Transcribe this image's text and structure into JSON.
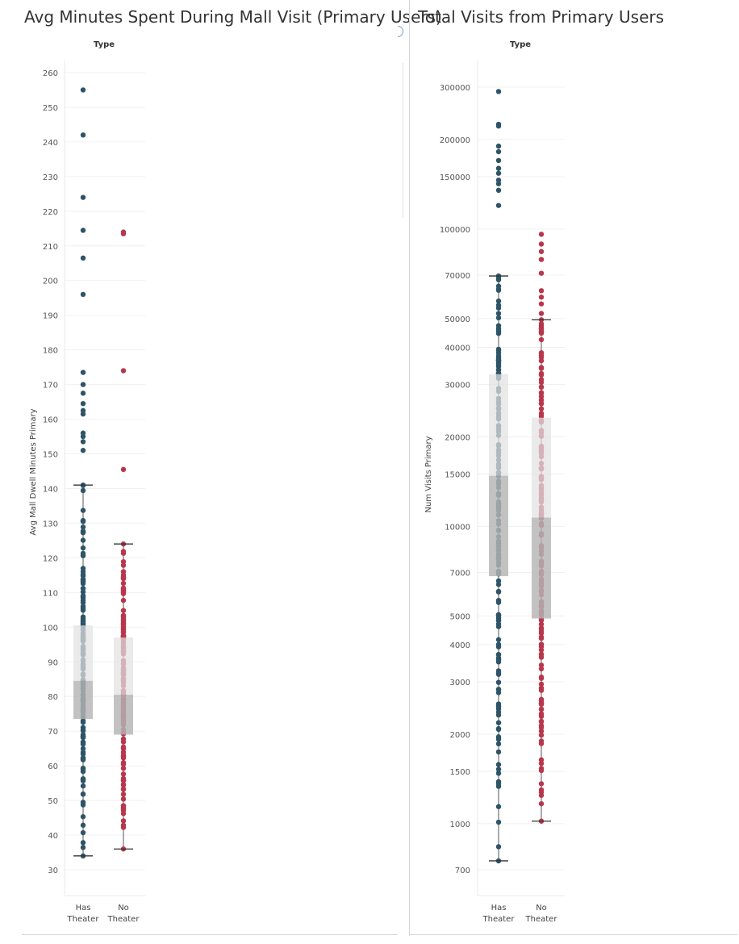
{
  "charts": [
    {
      "title": "Avg Minutes Spent During Mall Visit (Primary Users)",
      "header": "Type",
      "ylabel": "Avg Mall Dwell Minutes Primary",
      "ticks": [
        30,
        40,
        50,
        60,
        70,
        80,
        90,
        100,
        110,
        120,
        130,
        140,
        150,
        160,
        170,
        180,
        190,
        200,
        210,
        220,
        230,
        240,
        250,
        260
      ],
      "categories": [
        [
          "Has",
          "Theater"
        ],
        [
          "No",
          "Theater"
        ]
      ]
    },
    {
      "title": "Total Visits from Primary Users",
      "header": "Type",
      "ylabel": "Num Visits Primary",
      "ticks": [
        "700",
        "1000",
        "1500",
        "2000",
        "3000",
        "4000",
        "5000",
        "7000",
        "10000",
        "15000",
        "20000",
        "30000",
        "40000",
        "50000",
        "70000",
        "100000",
        "150000",
        "200000",
        "300000"
      ],
      "categories": [
        [
          "Has",
          "Theater"
        ],
        [
          "No",
          "Theater"
        ]
      ]
    }
  ],
  "chart_data": [
    {
      "type": "scatter",
      "subtype": "box-and-whisker with jittered points",
      "title": "Avg Minutes Spent During Mall Visit (Primary Users)",
      "xlabel": "Type",
      "ylabel": "Avg Mall Dwell Minutes Primary",
      "ylim": [
        30,
        260
      ],
      "scale": "linear",
      "grid": true,
      "categories": [
        "Has Theater",
        "No Theater"
      ],
      "boxes": [
        {
          "category": "Has Theater",
          "whisker_low": 34,
          "q1": 73.5,
          "median": 84.5,
          "q3": 100.5,
          "whisker_high": 141
        },
        {
          "category": "No Theater",
          "whisker_low": 36,
          "q1": 69,
          "median": 80.5,
          "q3": 97,
          "whisker_high": 124
        }
      ],
      "outliers": [
        {
          "category": "Has Theater",
          "values": [
            255,
            242,
            224,
            214.5,
            206.5,
            196,
            173.5,
            170,
            167.5,
            164.5,
            162.5,
            161.5,
            156,
            155,
            153.5,
            151
          ]
        },
        {
          "category": "No Theater",
          "values": [
            214,
            213.5,
            174,
            145.5
          ]
        }
      ],
      "colors": {
        "Has Theater": "#2e5467",
        "No Theater": "#b8374c"
      }
    },
    {
      "type": "scatter",
      "subtype": "box-and-whisker with jittered points",
      "title": "Total Visits from Primary Users",
      "xlabel": "Type",
      "ylabel": "Num Visits Primary",
      "ylim": [
        600,
        350000
      ],
      "scale": "log",
      "grid": true,
      "categories": [
        "Has Theater",
        "No Theater"
      ],
      "boxes": [
        {
          "category": "Has Theater",
          "whisker_low": 750,
          "q1": 6800,
          "median": 14800,
          "q3": 32500,
          "whisker_high": 69500
        },
        {
          "category": "No Theater",
          "whisker_low": 1020,
          "q1": 4900,
          "median": 10700,
          "q3": 23200,
          "whisker_high": 49500
        }
      ],
      "outliers": [
        {
          "category": "Has Theater",
          "values": [
            290000,
            225000,
            222000,
            190000,
            182000,
            170000,
            160000,
            154000,
            146000,
            142000,
            135000,
            120000
          ]
        },
        {
          "category": "No Theater",
          "values": [
            96000,
            89000,
            84000,
            79000,
            71000,
            62000,
            59000,
            56000,
            52000
          ]
        }
      ],
      "colors": {
        "Has Theater": "#2e5467",
        "No Theater": "#b8374c"
      }
    }
  ]
}
